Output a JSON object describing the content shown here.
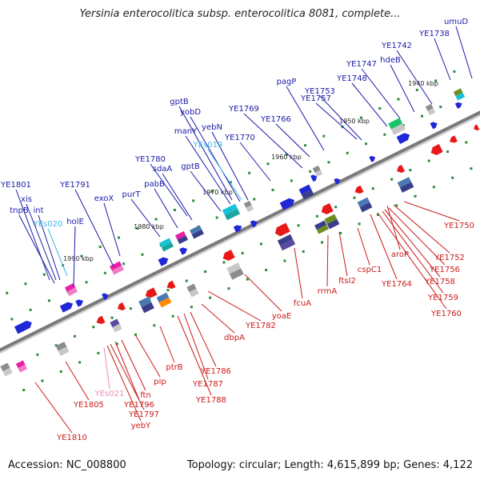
{
  "title": "Yersinia enterocolitica subsp. enterocolitica 8081, complete...",
  "footer": {
    "accession": "Accession: NC_008800",
    "summary": "Topology: circular; Length: 4,615,899 bp; Genes: 4,122"
  },
  "colors": {
    "top_label": "#1a1aa8",
    "bottom_label": "#cc1a1a",
    "rna_top": "#3fb8e8",
    "rna_bottom": "#f08cbc",
    "backbone": "#7a7a7a"
  },
  "kbp_markers": [
    "1940 kbp",
    "1950 kbp",
    "1960 kbp",
    "1970 kbp",
    "1980 kbp",
    "1990 kbp"
  ],
  "top_labels": [
    {
      "text": "umuD",
      "color": "top"
    },
    {
      "text": "YE1738",
      "color": "top"
    },
    {
      "text": "YE1742",
      "color": "top"
    },
    {
      "text": "hdeB",
      "color": "top"
    },
    {
      "text": "YE1747",
      "color": "top"
    },
    {
      "text": "YE1748",
      "color": "top"
    },
    {
      "text": "YE1753",
      "color": "top"
    },
    {
      "text": "pagP",
      "color": "top"
    },
    {
      "text": "YE1757",
      "color": "top"
    },
    {
      "text": "YE1766",
      "color": "top"
    },
    {
      "text": "YE1769",
      "color": "top"
    },
    {
      "text": "YE1770",
      "color": "top"
    },
    {
      "text": "gptB",
      "color": "top"
    },
    {
      "text": "yobD",
      "color": "top"
    },
    {
      "text": "yebN",
      "color": "top"
    },
    {
      "text": "manY",
      "color": "top"
    },
    {
      "text": "YEs019",
      "color": "rna"
    },
    {
      "text": "YE1780",
      "color": "top"
    },
    {
      "text": "sdaA",
      "color": "top"
    },
    {
      "text": "gptB",
      "color": "top"
    },
    {
      "text": "pabB",
      "color": "top"
    },
    {
      "text": "purT",
      "color": "top"
    },
    {
      "text": "exoX",
      "color": "top"
    },
    {
      "text": "YE1791",
      "color": "top"
    },
    {
      "text": "YE1801",
      "color": "top"
    },
    {
      "text": "xis",
      "color": "top"
    },
    {
      "text": "tnpB",
      "color": "top"
    },
    {
      "text": "int",
      "color": "top"
    },
    {
      "text": "YEs020",
      "color": "rna"
    },
    {
      "text": "holE",
      "color": "top"
    }
  ],
  "bottom_labels": [
    {
      "text": "YE1750",
      "color": "bottom"
    },
    {
      "text": "YE1752",
      "color": "bottom"
    },
    {
      "text": "aroP",
      "color": "bottom"
    },
    {
      "text": "YE1756",
      "color": "bottom"
    },
    {
      "text": "YE1758",
      "color": "bottom"
    },
    {
      "text": "YE1759",
      "color": "bottom"
    },
    {
      "text": "YE1760",
      "color": "bottom"
    },
    {
      "text": "YE1764",
      "color": "bottom"
    },
    {
      "text": "cspC1",
      "color": "bottom"
    },
    {
      "text": "ftsI2",
      "color": "bottom"
    },
    {
      "text": "rrmA",
      "color": "bottom"
    },
    {
      "text": "fcuA",
      "color": "bottom"
    },
    {
      "text": "yoaE",
      "color": "bottom"
    },
    {
      "text": "YE1782",
      "color": "bottom"
    },
    {
      "text": "dbpA",
      "color": "bottom"
    },
    {
      "text": "YE1786",
      "color": "bottom"
    },
    {
      "text": "YE1787",
      "color": "bottom"
    },
    {
      "text": "YE1788",
      "color": "bottom"
    },
    {
      "text": "ptrB",
      "color": "bottom"
    },
    {
      "text": "pip",
      "color": "bottom"
    },
    {
      "text": "ftn",
      "color": "bottom"
    },
    {
      "text": "YE1796",
      "color": "bottom"
    },
    {
      "text": "YE1797",
      "color": "bottom"
    },
    {
      "text": "yebY",
      "color": "bottom"
    },
    {
      "text": "YEs021",
      "color": "rna2"
    },
    {
      "text": "YE1805",
      "color": "bottom"
    },
    {
      "text": "YE1810",
      "color": "bottom"
    }
  ]
}
